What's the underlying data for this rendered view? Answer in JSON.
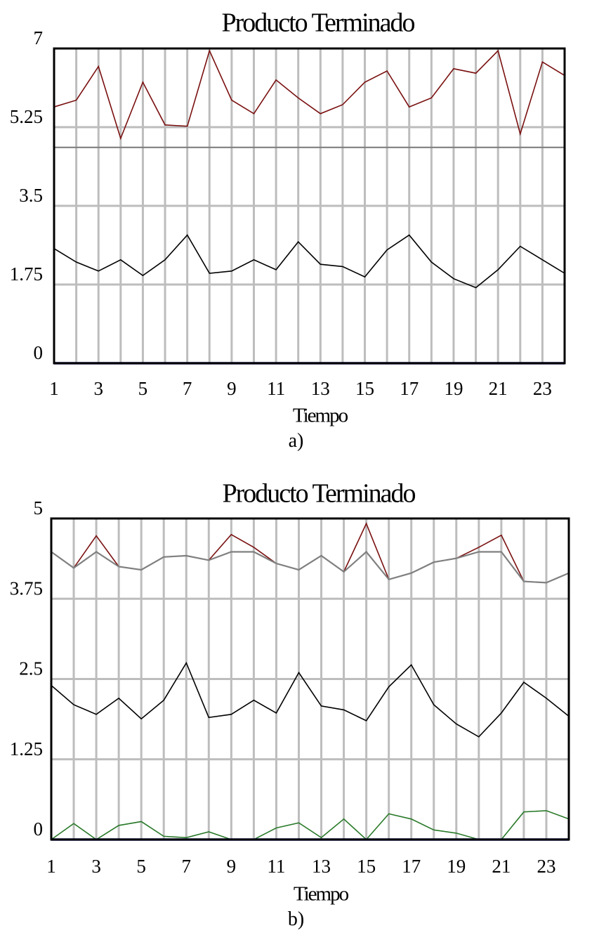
{
  "chart_data": [
    {
      "type": "line",
      "title": "Producto Terminado",
      "xlabel": "Tiempo",
      "ylabel": "",
      "caption": "a)",
      "xlim": [
        1,
        24
      ],
      "ylim": [
        0,
        7
      ],
      "xtick_labels": [
        "1",
        "3",
        "5",
        "7",
        "9",
        "11",
        "13",
        "15",
        "17",
        "19",
        "21",
        "23"
      ],
      "ytick_labels": [
        "0",
        "1.75",
        "3.5",
        "5.25",
        "7"
      ],
      "grid": true,
      "x": [
        1,
        2,
        3,
        4,
        5,
        6,
        7,
        8,
        9,
        10,
        11,
        12,
        13,
        14,
        15,
        16,
        17,
        18,
        19,
        20,
        21,
        22,
        23,
        24
      ],
      "series": [
        {
          "color": "#7a1010",
          "values": [
            5.7,
            5.85,
            6.6,
            5.0,
            6.25,
            5.3,
            5.27,
            6.95,
            5.85,
            5.55,
            6.3,
            5.9,
            5.55,
            5.75,
            6.25,
            6.5,
            5.7,
            5.9,
            6.55,
            6.45,
            6.95,
            5.1,
            6.7,
            6.4
          ]
        },
        {
          "color": "#808080",
          "values": [
            4.8,
            4.8,
            4.8,
            4.8,
            4.8,
            4.8,
            4.8,
            4.8,
            4.8,
            4.8,
            4.8,
            4.8,
            4.8,
            4.8,
            4.8,
            4.8,
            4.8,
            4.8,
            4.8,
            4.8,
            4.8,
            4.8,
            4.8,
            4.8
          ]
        },
        {
          "color": "#000000",
          "values": [
            2.55,
            2.25,
            2.05,
            2.3,
            1.95,
            2.3,
            2.85,
            2.0,
            2.05,
            2.3,
            2.08,
            2.7,
            2.2,
            2.15,
            1.92,
            2.52,
            2.85,
            2.25,
            1.88,
            1.68,
            2.08,
            2.6,
            2.3,
            2.0
          ]
        },
        {
          "color": "#1a1a8c",
          "values": [
            0,
            0,
            0,
            0,
            0,
            0,
            0,
            0,
            0,
            0,
            0,
            0,
            0,
            0,
            0,
            0,
            0,
            0,
            0,
            0,
            0,
            0,
            0,
            0
          ]
        }
      ]
    },
    {
      "type": "line",
      "title": "Producto Terminado",
      "xlabel": "Tiempo",
      "ylabel": "",
      "caption": "b)",
      "xlim": [
        1,
        24
      ],
      "ylim": [
        0,
        5
      ],
      "xtick_labels": [
        "1",
        "3",
        "5",
        "7",
        "9",
        "11",
        "13",
        "15",
        "17",
        "19",
        "21",
        "23"
      ],
      "ytick_labels": [
        "0",
        "1.25",
        "2.5",
        "3.75",
        "5"
      ],
      "grid": true,
      "x": [
        1,
        2,
        3,
        4,
        5,
        6,
        7,
        8,
        9,
        10,
        11,
        12,
        13,
        14,
        15,
        16,
        17,
        18,
        19,
        20,
        21,
        22,
        23,
        24
      ],
      "series": [
        {
          "color": "#7a1010",
          "values": [
            4.48,
            4.23,
            4.73,
            4.25,
            4.2,
            4.4,
            4.42,
            4.35,
            4.75,
            4.55,
            4.3,
            4.2,
            4.42,
            4.17,
            4.92,
            4.05,
            4.15,
            4.32,
            4.38,
            4.55,
            4.74,
            4.02,
            4.0,
            4.15
          ]
        },
        {
          "color": "#808080",
          "values": [
            4.48,
            4.23,
            4.48,
            4.25,
            4.2,
            4.4,
            4.42,
            4.35,
            4.48,
            4.48,
            4.3,
            4.2,
            4.42,
            4.17,
            4.48,
            4.05,
            4.15,
            4.32,
            4.38,
            4.48,
            4.48,
            4.02,
            4.0,
            4.15
          ]
        },
        {
          "color": "#000000",
          "values": [
            2.4,
            2.1,
            1.95,
            2.2,
            1.88,
            2.17,
            2.75,
            1.9,
            1.95,
            2.17,
            1.97,
            2.6,
            2.08,
            2.02,
            1.85,
            2.38,
            2.72,
            2.1,
            1.8,
            1.6,
            1.97,
            2.45,
            2.2,
            1.92
          ]
        },
        {
          "color": "#2a7a2a",
          "values": [
            0,
            0.25,
            0,
            0.22,
            0.28,
            0.05,
            0.03,
            0.12,
            0,
            0,
            0.18,
            0.26,
            0.03,
            0.32,
            0,
            0.4,
            0.32,
            0.15,
            0.1,
            0,
            0,
            0.43,
            0.45,
            0.32
          ]
        },
        {
          "color": "#1a1a8c",
          "values": [
            0,
            0,
            0,
            0,
            0,
            0,
            0,
            0,
            0,
            0,
            0,
            0,
            0,
            0,
            0,
            0,
            0,
            0,
            0,
            0,
            0,
            0,
            0,
            0
          ]
        }
      ]
    }
  ]
}
